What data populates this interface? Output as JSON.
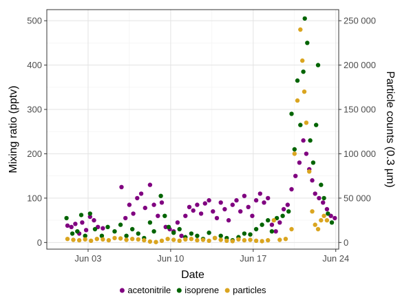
{
  "chart_data": {
    "type": "scatter",
    "xlabel": "Date",
    "ylabel": "Mixing ratio (pptv)",
    "y2label": "Particle counts (0.3 µm)",
    "x_ticks": [
      {
        "date": "2019-06-03",
        "label": "Jun 03"
      },
      {
        "date": "2019-06-10",
        "label": "Jun 10"
      },
      {
        "date": "2019-06-17",
        "label": "Jun 17"
      },
      {
        "date": "2019-06-24",
        "label": "Jun 24"
      }
    ],
    "xlim": [
      "2019-05-30T12:00",
      "2019-06-24T06:00"
    ],
    "y_ticks": [
      {
        "value": 0,
        "label": "0"
      },
      {
        "value": 100,
        "label": "100"
      },
      {
        "value": 200,
        "label": "200"
      },
      {
        "value": 300,
        "label": "300"
      },
      {
        "value": 400,
        "label": "400"
      },
      {
        "value": 500,
        "label": "500"
      }
    ],
    "ylim": [
      -15,
      525
    ],
    "y2_ticks": [
      {
        "value": 0,
        "label": "0"
      },
      {
        "value": 50000,
        "label": "50 000"
      },
      {
        "value": 100000,
        "label": "100 000"
      },
      {
        "value": 150000,
        "label": "150 000"
      },
      {
        "value": 200000,
        "label": "200 000"
      },
      {
        "value": 250000,
        "label": "250 000"
      }
    ],
    "y2lim": [
      -7500,
      262500
    ],
    "grid": true,
    "legend_position": "bottom",
    "series": [
      {
        "name": "acetonitrile",
        "color": "#800080",
        "axis": "left",
        "points": [
          [
            "2019-06-01T06:00",
            38
          ],
          [
            "2019-06-01T14:00",
            35
          ],
          [
            "2019-06-01T22:00",
            42
          ],
          [
            "2019-06-02T06:00",
            20
          ],
          [
            "2019-06-02T12:00",
            45
          ],
          [
            "2019-06-02T20:00",
            28
          ],
          [
            "2019-06-03T04:00",
            58
          ],
          [
            "2019-06-03T12:00",
            50
          ],
          [
            "2019-06-03T20:00",
            35
          ],
          [
            "2019-06-04T06:00",
            32
          ],
          [
            "2019-06-05T20:00",
            125
          ],
          [
            "2019-06-06T04:00",
            55
          ],
          [
            "2019-06-06T12:00",
            85
          ],
          [
            "2019-06-06T20:00",
            65
          ],
          [
            "2019-06-07T04:00",
            100
          ],
          [
            "2019-06-07T12:00",
            110
          ],
          [
            "2019-06-07T20:00",
            78
          ],
          [
            "2019-06-08T06:00",
            130
          ],
          [
            "2019-06-08T14:00",
            85
          ],
          [
            "2019-06-08T22:00",
            60
          ],
          [
            "2019-06-09T06:00",
            90
          ],
          [
            "2019-06-09T14:00",
            35
          ],
          [
            "2019-06-09T22:00",
            30
          ],
          [
            "2019-06-10T06:00",
            25
          ],
          [
            "2019-06-10T14:00",
            45
          ],
          [
            "2019-06-10T22:00",
            15
          ],
          [
            "2019-06-11T06:00",
            60
          ],
          [
            "2019-06-11T14:00",
            80
          ],
          [
            "2019-06-11T22:00",
            72
          ],
          [
            "2019-06-12T06:00",
            85
          ],
          [
            "2019-06-12T14:00",
            65
          ],
          [
            "2019-06-12T22:00",
            88
          ],
          [
            "2019-06-13T06:00",
            95
          ],
          [
            "2019-06-13T14:00",
            70
          ],
          [
            "2019-06-13T22:00",
            55
          ],
          [
            "2019-06-14T06:00",
            90
          ],
          [
            "2019-06-14T14:00",
            75
          ],
          [
            "2019-06-14T22:00",
            50
          ],
          [
            "2019-06-15T06:00",
            85
          ],
          [
            "2019-06-15T14:00",
            95
          ],
          [
            "2019-06-15T22:00",
            70
          ],
          [
            "2019-06-16T06:00",
            105
          ],
          [
            "2019-06-16T14:00",
            80
          ],
          [
            "2019-06-16T22:00",
            60
          ],
          [
            "2019-06-17T06:00",
            95
          ],
          [
            "2019-06-17T14:00",
            110
          ],
          [
            "2019-06-17T22:00",
            90
          ],
          [
            "2019-06-18T06:00",
            100
          ],
          [
            "2019-06-18T14:00",
            40
          ],
          [
            "2019-06-18T22:00",
            25
          ],
          [
            "2019-06-19T06:00",
            45
          ],
          [
            "2019-06-19T14:00",
            75
          ],
          [
            "2019-06-19T22:00",
            85
          ],
          [
            "2019-06-20T06:00",
            120
          ],
          [
            "2019-06-20T14:00",
            150
          ],
          [
            "2019-06-20T22:00",
            180
          ],
          [
            "2019-06-21T06:00",
            230
          ],
          [
            "2019-06-21T12:00",
            200
          ],
          [
            "2019-06-21T18:00",
            165
          ],
          [
            "2019-06-22T00:00",
            140
          ],
          [
            "2019-06-22T06:00",
            110
          ],
          [
            "2019-06-22T14:00",
            100
          ],
          [
            "2019-06-22T22:00",
            90
          ],
          [
            "2019-06-23T06:00",
            75
          ],
          [
            "2019-06-23T14:00",
            60
          ],
          [
            "2019-06-23T22:00",
            55
          ]
        ]
      },
      {
        "name": "isoprene",
        "color": "#006400",
        "axis": "left",
        "points": [
          [
            "2019-06-01T04:00",
            55
          ],
          [
            "2019-06-01T16:00",
            20
          ],
          [
            "2019-06-02T02:00",
            25
          ],
          [
            "2019-06-02T10:00",
            62
          ],
          [
            "2019-06-02T18:00",
            15
          ],
          [
            "2019-06-03T04:00",
            65
          ],
          [
            "2019-06-03T14:00",
            30
          ],
          [
            "2019-06-04T04:00",
            15
          ],
          [
            "2019-06-04T16:00",
            35
          ],
          [
            "2019-06-05T06:00",
            25
          ],
          [
            "2019-06-05T18:00",
            40
          ],
          [
            "2019-06-06T06:00",
            15
          ],
          [
            "2019-06-06T18:00",
            30
          ],
          [
            "2019-06-07T06:00",
            20
          ],
          [
            "2019-06-07T18:00",
            10
          ],
          [
            "2019-06-08T06:00",
            45
          ],
          [
            "2019-06-08T14:00",
            25
          ],
          [
            "2019-06-09T04:00",
            105
          ],
          [
            "2019-06-09T12:00",
            60
          ],
          [
            "2019-06-09T20:00",
            35
          ],
          [
            "2019-06-10T06:00",
            22
          ],
          [
            "2019-06-10T18:00",
            30
          ],
          [
            "2019-06-11T06:00",
            12
          ],
          [
            "2019-06-11T18:00",
            20
          ],
          [
            "2019-06-12T06:00",
            15
          ],
          [
            "2019-06-12T18:00",
            8
          ],
          [
            "2019-06-13T06:00",
            22
          ],
          [
            "2019-06-13T18:00",
            10
          ],
          [
            "2019-06-14T06:00",
            15
          ],
          [
            "2019-06-14T18:00",
            10
          ],
          [
            "2019-06-15T06:00",
            5
          ],
          [
            "2019-06-15T18:00",
            12
          ],
          [
            "2019-06-16T06:00",
            20
          ],
          [
            "2019-06-16T18:00",
            18
          ],
          [
            "2019-06-17T06:00",
            30
          ],
          [
            "2019-06-17T18:00",
            40
          ],
          [
            "2019-06-18T06:00",
            50
          ],
          [
            "2019-06-18T14:00",
            25
          ],
          [
            "2019-06-19T00:00",
            55
          ],
          [
            "2019-06-19T12:00",
            60
          ],
          [
            "2019-06-20T00:00",
            70
          ],
          [
            "2019-06-20T06:00",
            290
          ],
          [
            "2019-06-20T12:00",
            210
          ],
          [
            "2019-06-20T18:00",
            365
          ],
          [
            "2019-06-21T00:00",
            265
          ],
          [
            "2019-06-21T06:00",
            385
          ],
          [
            "2019-06-21T09:00",
            505
          ],
          [
            "2019-06-21T14:00",
            450
          ],
          [
            "2019-06-21T20:00",
            230
          ],
          [
            "2019-06-22T02:00",
            180
          ],
          [
            "2019-06-22T08:00",
            265
          ],
          [
            "2019-06-22T12:00",
            400
          ],
          [
            "2019-06-22T18:00",
            130
          ],
          [
            "2019-06-23T00:00",
            100
          ],
          [
            "2019-06-23T08:00",
            65
          ],
          [
            "2019-06-23T16:00",
            45
          ]
        ]
      },
      {
        "name": "particles",
        "color": "#DAA520",
        "axis": "right",
        "points": [
          [
            "2019-06-01T06:00",
            4000
          ],
          [
            "2019-06-01T18:00",
            3000
          ],
          [
            "2019-06-02T06:00",
            2500
          ],
          [
            "2019-06-02T18:00",
            3500
          ],
          [
            "2019-06-03T06:00",
            2000
          ],
          [
            "2019-06-03T18:00",
            4000
          ],
          [
            "2019-06-04T06:00",
            3500
          ],
          [
            "2019-06-04T18:00",
            2500
          ],
          [
            "2019-06-05T06:00",
            5000
          ],
          [
            "2019-06-05T18:00",
            4500
          ],
          [
            "2019-06-06T06:00",
            3000
          ],
          [
            "2019-06-06T18:00",
            4000
          ],
          [
            "2019-06-07T06:00",
            3500
          ],
          [
            "2019-06-07T18:00",
            2500
          ],
          [
            "2019-06-08T06:00",
            1000
          ],
          [
            "2019-06-08T18:00",
            500
          ],
          [
            "2019-06-09T06:00",
            2000
          ],
          [
            "2019-06-09T18:00",
            4000
          ],
          [
            "2019-06-10T06:00",
            3000
          ],
          [
            "2019-06-10T18:00",
            2000
          ],
          [
            "2019-06-11T06:00",
            3500
          ],
          [
            "2019-06-11T18:00",
            4000
          ],
          [
            "2019-06-12T06:00",
            2500
          ],
          [
            "2019-06-12T18:00",
            3000
          ],
          [
            "2019-06-13T06:00",
            2000
          ],
          [
            "2019-06-13T18:00",
            5000
          ],
          [
            "2019-06-14T06:00",
            3000
          ],
          [
            "2019-06-14T18:00",
            2000
          ],
          [
            "2019-06-15T06:00",
            1500
          ],
          [
            "2019-06-15T18:00",
            3500
          ],
          [
            "2019-06-16T06:00",
            2500
          ],
          [
            "2019-06-16T18:00",
            3000
          ],
          [
            "2019-06-17T06:00",
            2000
          ],
          [
            "2019-06-17T18:00",
            1500
          ],
          [
            "2019-06-18T06:00",
            2500
          ],
          [
            "2019-06-18T18:00",
            25000
          ],
          [
            "2019-06-19T06:00",
            3000
          ],
          [
            "2019-06-19T18:00",
            4000
          ],
          [
            "2019-06-20T06:00",
            15000
          ],
          [
            "2019-06-20T12:00",
            100000
          ],
          [
            "2019-06-20T18:00",
            160000
          ],
          [
            "2019-06-21T00:00",
            240000
          ],
          [
            "2019-06-21T04:00",
            205000
          ],
          [
            "2019-06-21T08:00",
            170000
          ],
          [
            "2019-06-21T12:00",
            135000
          ],
          [
            "2019-06-21T18:00",
            80000
          ],
          [
            "2019-06-22T00:00",
            35000
          ],
          [
            "2019-06-22T06:00",
            20000
          ],
          [
            "2019-06-22T12:00",
            15000
          ],
          [
            "2019-06-22T18:00",
            25000
          ],
          [
            "2019-06-23T00:00",
            30000
          ],
          [
            "2019-06-23T06:00",
            25000
          ]
        ]
      }
    ]
  }
}
